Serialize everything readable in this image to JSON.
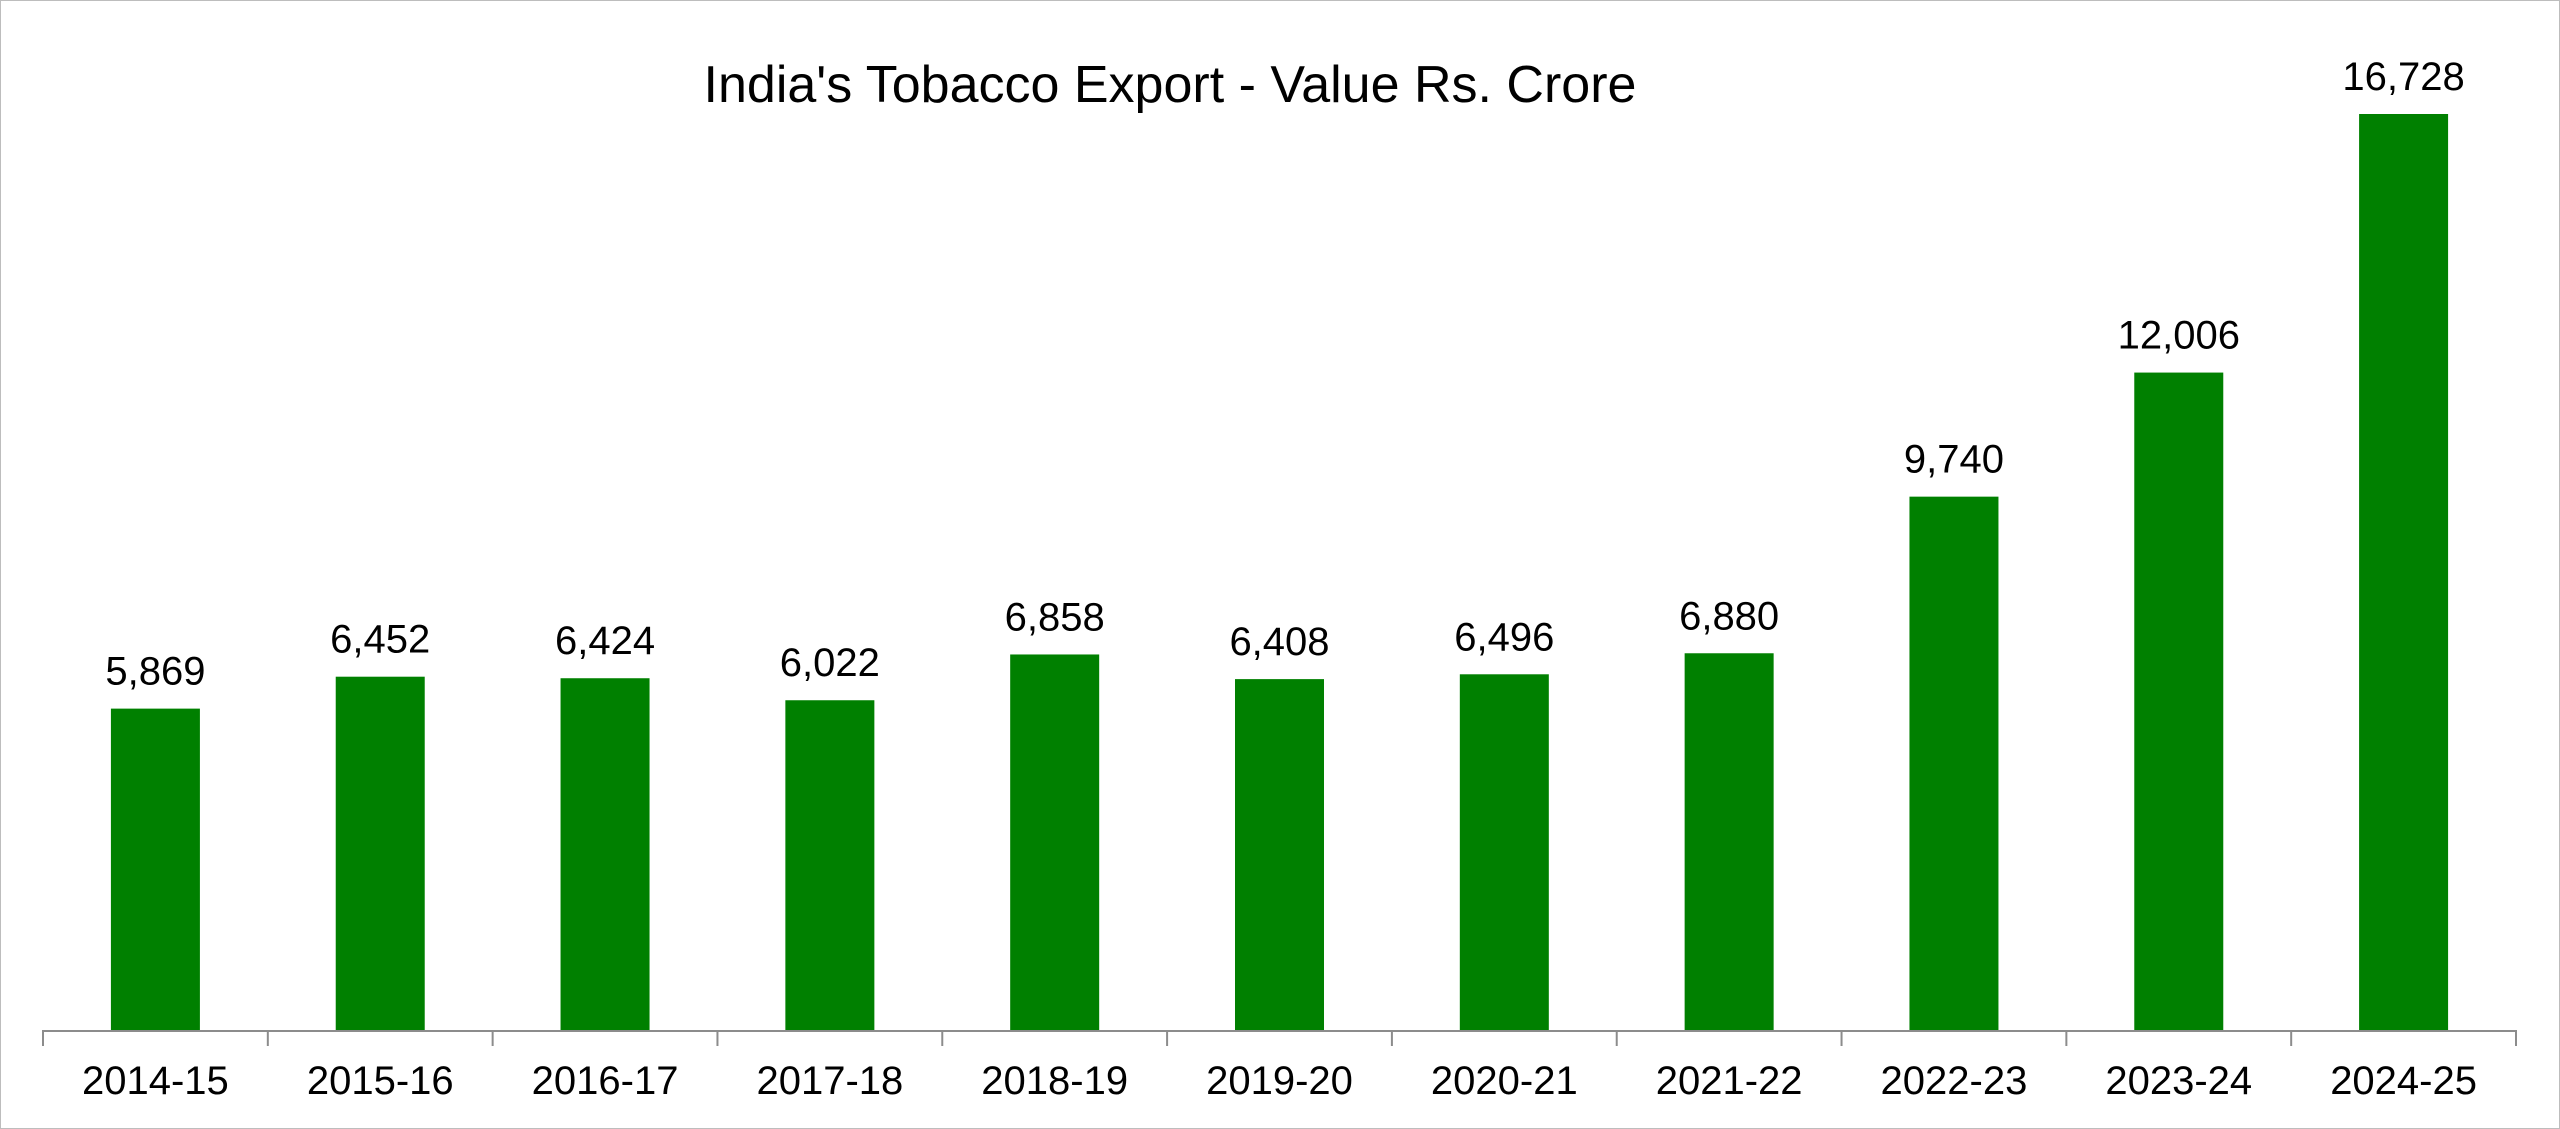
{
  "chart_data": {
    "type": "bar",
    "title": "India's Tobacco Export - Value Rs. Crore",
    "xlabel": "",
    "ylabel": "",
    "categories": [
      "2014-15",
      "2015-16",
      "2016-17",
      "2017-18",
      "2018-19",
      "2019-20",
      "2020-21",
      "2021-22",
      "2022-23",
      "2023-24",
      "2024-25"
    ],
    "values": [
      5869,
      6452,
      6424,
      6022,
      6858,
      6408,
      6496,
      6880,
      9740,
      12006,
      16728
    ],
    "value_labels": [
      "5,869",
      "6,452",
      "6,424",
      "6,022",
      "6,858",
      "6,408",
      "6,496",
      "6,880",
      "9,740",
      "12,006",
      "16,728"
    ],
    "ylim": [
      0,
      16728
    ],
    "grid": false,
    "legend": "none",
    "bar_color": "#008000"
  }
}
